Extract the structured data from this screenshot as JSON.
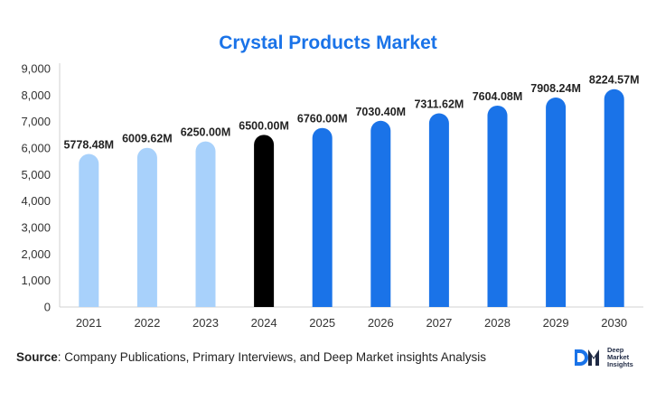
{
  "chart_data": {
    "type": "bar",
    "title": "Crystal Products Market",
    "categories": [
      "2021",
      "2022",
      "2023",
      "2024",
      "2025",
      "2026",
      "2027",
      "2028",
      "2029",
      "2030"
    ],
    "values": [
      5778.48,
      6009.62,
      6250.0,
      6500.0,
      6760.0,
      7030.4,
      7311.62,
      7604.08,
      7908.24,
      8224.57
    ],
    "data_labels": [
      "5778.48M",
      "6009.62M",
      "6250.00M",
      "6500.00M",
      "6760.00M",
      "7030.40M",
      "7311.62M",
      "7604.08M",
      "7908.24M",
      "8224.57M"
    ],
    "ylim": [
      0,
      9000
    ],
    "yticks": [
      0,
      1000,
      2000,
      3000,
      4000,
      5000,
      6000,
      7000,
      8000,
      9000
    ],
    "ytick_labels": [
      "0",
      "1,000",
      "2,000",
      "3,000",
      "4,000",
      "5,000",
      "6,000",
      "7,000",
      "8,000",
      "9,000"
    ],
    "grid": false,
    "colors": {
      "historical": "#a8d1fb",
      "base_year": "#000000",
      "forecast": "#1a73e8",
      "title": "#1a73e8"
    }
  },
  "footer": {
    "source_label": "Source",
    "source_text": ": Company Publications, Primary Interviews, and Deep Market insights Analysis"
  },
  "logo": {
    "mark": "DM",
    "line1": "Deep",
    "line2": "Market",
    "line3": "Insights"
  }
}
